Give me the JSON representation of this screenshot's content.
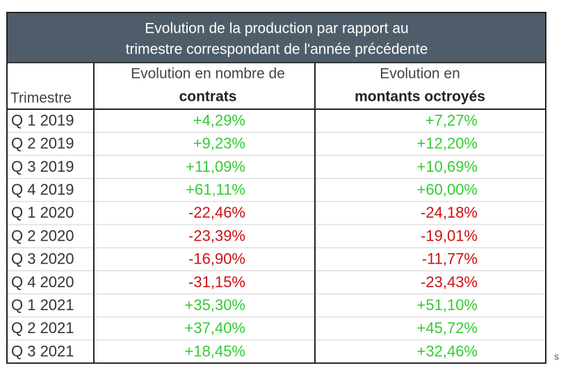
{
  "header": {
    "title_lines": [
      "Evolution de la production par rapport au",
      "trimestre correspondant de l'année précédente"
    ]
  },
  "table": {
    "columns": [
      {
        "lines": [
          "Trimestre"
        ]
      },
      {
        "lines": [
          "Evolution en nombre de",
          "contrats"
        ]
      },
      {
        "lines": [
          "Evolution en",
          "montants octroyés"
        ]
      }
    ],
    "rows": [
      [
        "Q 1 2019",
        "+4,29%",
        "+7,27%"
      ],
      [
        "Q 2 2019",
        "+9,23%",
        "+12,20%"
      ],
      [
        "Q 3 2019",
        "+11,09%",
        "+10,69%"
      ],
      [
        "Q 4 2019",
        "+61,11%",
        "+60,00%"
      ],
      [
        "Q 1 2020",
        "-22,46%",
        "-24,18%"
      ],
      [
        "Q 2 2020",
        "-23,39%",
        "-19,01%"
      ],
      [
        "Q 3 2020",
        "-16,90%",
        "-11,77%"
      ],
      [
        "Q 4 2020",
        "-31,15%",
        "-23,43%"
      ],
      [
        "Q 1 2021",
        "+35,30%",
        "+51,10%"
      ],
      [
        "Q 2 2021",
        "+37,40%",
        "+45,72%"
      ],
      [
        "Q 3 2021",
        "+18,45%",
        "+32,46%"
      ]
    ],
    "colors": {
      "positive": "#33cc33",
      "negative": "#cc1111",
      "header_bg": "#4f5d6b"
    }
  },
  "footnote": "s"
}
